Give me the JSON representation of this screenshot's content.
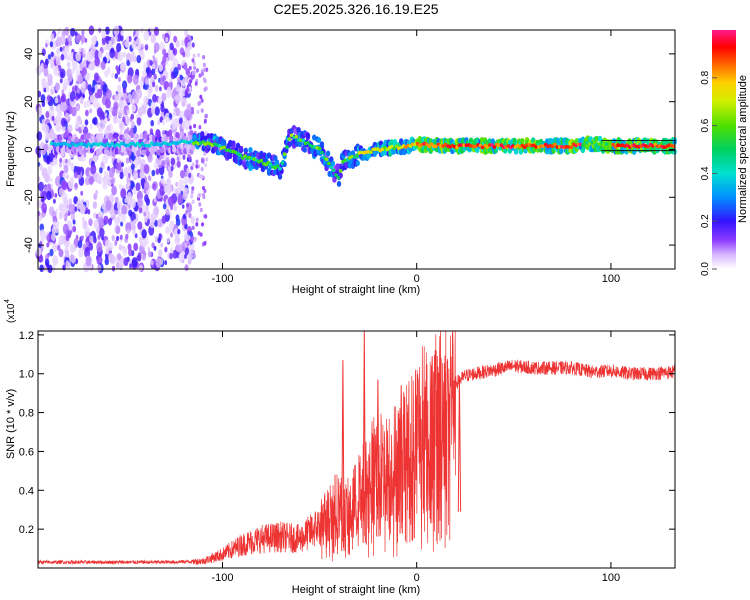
{
  "title": "C2E5.2025.326.16.19.E25",
  "chart_data": [
    {
      "type": "heatmap",
      "title": "",
      "xlabel": "Height of straight line (km)",
      "ylabel": "Frequency (Hz)",
      "xlim": [
        -195,
        133
      ],
      "ylim": [
        -50,
        50
      ],
      "xticks": [
        -100,
        0,
        100
      ],
      "xtick_labels": [
        "-100",
        "0",
        "100"
      ],
      "yticks": [
        -40,
        -20,
        0,
        20,
        40
      ],
      "ytick_labels": [
        "-40",
        "-20",
        "0",
        "20",
        "40"
      ],
      "grid": false,
      "colorbar": {
        "label": "Normalized spectral amplitude",
        "range": [
          0,
          1
        ],
        "ticks": [
          0,
          0.2,
          0.4,
          0.6,
          0.8
        ],
        "tick_labels": [
          "0.0",
          "0.2",
          "0.4",
          "0.6",
          "0.8"
        ]
      },
      "ridge": {
        "x": [
          -185,
          -160,
          -140,
          -120,
          -110,
          -100,
          -90,
          -80,
          -70,
          -65,
          -60,
          -50,
          -45,
          -40,
          -38,
          -30,
          -20,
          -10,
          0,
          20,
          50,
          80,
          90,
          100,
          133
        ],
        "freq": [
          2,
          2,
          2,
          3,
          3,
          1,
          -3,
          -5,
          -8,
          6,
          4,
          0,
          -6,
          -12,
          -5,
          -2,
          0,
          1,
          2,
          1.5,
          1.5,
          1.5,
          2.5,
          1.5,
          1.5
        ]
      }
    },
    {
      "type": "line",
      "title": "",
      "xlabel": "Height of straight line (km)",
      "ylabel": "SNR (10 * v/v)",
      "y_multiplier_label": "(x10",
      "y_multiplier_exp": "4",
      "xlim": [
        -195,
        133
      ],
      "ylim": [
        0,
        12200
      ],
      "xticks": [
        -100,
        0,
        100
      ],
      "xtick_labels": [
        "-100",
        "0",
        "100"
      ],
      "yticks": [
        2000,
        4000,
        6000,
        8000,
        10000,
        12000
      ],
      "ytick_labels": [
        "0.2",
        "0.4",
        "0.6",
        "0.8",
        "1.0",
        "1.2"
      ],
      "grid": false,
      "series": [
        {
          "name": "SNR",
          "color": "#ee3333",
          "x": [
            -195,
            -160,
            -130,
            -110,
            -100,
            -90,
            -80,
            -70,
            -60,
            -50,
            -45,
            -40,
            -37,
            -33,
            -30,
            -25,
            -20,
            -15,
            -10,
            -5,
            0,
            5,
            10,
            15,
            20,
            25,
            30,
            40,
            50,
            60,
            70,
            80,
            90,
            100,
            110,
            120,
            133
          ],
          "y": [
            300,
            300,
            300,
            350,
            700,
            1200,
            1500,
            1600,
            1500,
            2200,
            3000,
            3300,
            2800,
            3300,
            3800,
            4700,
            5400,
            5100,
            5700,
            6200,
            7200,
            7700,
            7800,
            8500,
            9500,
            9900,
            10000,
            10200,
            10400,
            10300,
            10300,
            10300,
            10100,
            10150,
            10000,
            10000,
            10100
          ]
        }
      ],
      "spikes": [
        {
          "x": -38,
          "y": 10700
        },
        {
          "x": -27,
          "y": 12200
        },
        {
          "x": -20,
          "y": 9700
        },
        {
          "x": -8,
          "y": 9400
        },
        {
          "x": 8,
          "y": 10900
        },
        {
          "x": 12,
          "y": 9000
        },
        {
          "x": 22,
          "y": 9900
        }
      ]
    }
  ]
}
